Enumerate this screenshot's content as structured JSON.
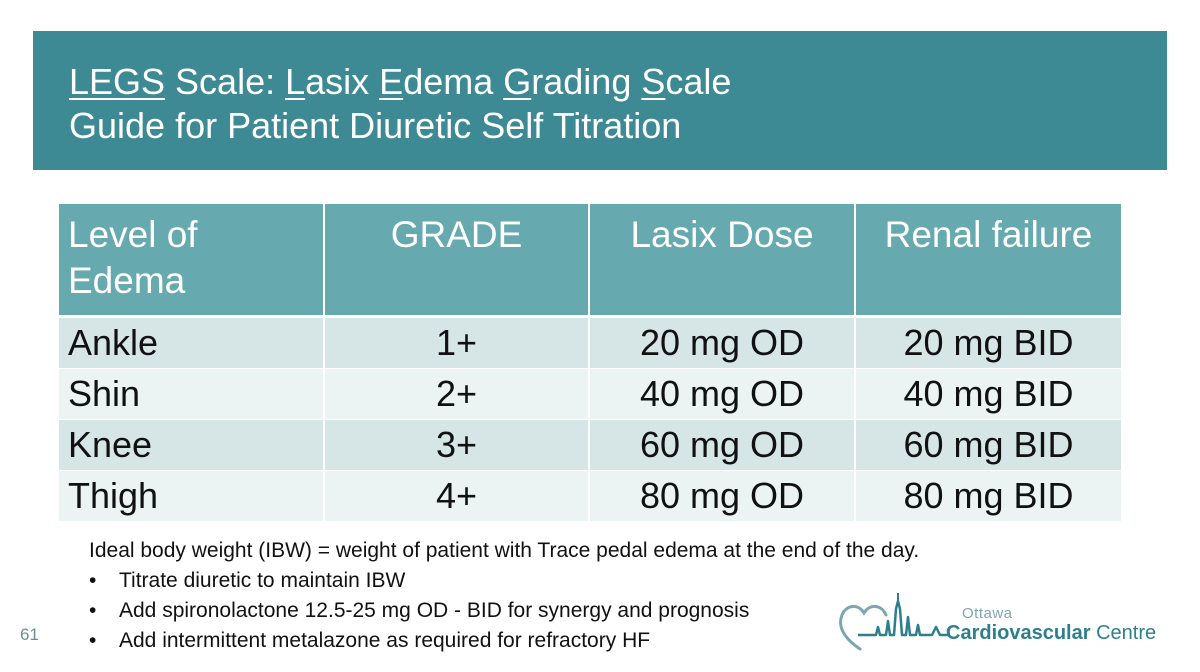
{
  "title": {
    "line1_parts": [
      {
        "text": "LEGS",
        "underline": true
      },
      {
        "text": " Scale: ",
        "underline": false
      },
      {
        "text": "L",
        "underline": true
      },
      {
        "text": "asix ",
        "underline": false
      },
      {
        "text": "E",
        "underline": true
      },
      {
        "text": "dema ",
        "underline": false
      },
      {
        "text": "G",
        "underline": true
      },
      {
        "text": "rading ",
        "underline": false
      },
      {
        "text": "S",
        "underline": true
      },
      {
        "text": "cale",
        "underline": false
      }
    ],
    "line2": "Guide for Patient Diuretic Self Titration"
  },
  "table": {
    "headers": [
      "Level of Edema",
      "GRADE",
      "Lasix Dose",
      "Renal failure"
    ],
    "rows": [
      [
        "Ankle",
        "1+",
        "20 mg OD",
        "20 mg BID"
      ],
      [
        "Shin",
        "2+",
        "40 mg OD",
        "40 mg BID"
      ],
      [
        "Knee",
        "3+",
        "60 mg OD",
        "60 mg BID"
      ],
      [
        "Thigh",
        "4+",
        "80 mg OD",
        "80 mg BID"
      ]
    ]
  },
  "notes": {
    "ibw": "Ideal body weight (IBW) = weight of patient with Trace pedal edema at the end of the day.",
    "bullet_char": "•",
    "bullets": [
      "Titrate diuretic to maintain IBW",
      "Add spironolactone 12.5-25 mg OD - BID for synergy and prognosis",
      "Add intermittent metalazone as required for refractory HF"
    ]
  },
  "slide_number": "61",
  "logo": {
    "line1": "Ottawa",
    "line2_bold": "Cardiovascular",
    "line2_rest": " Centre",
    "icon": "heart-skyline-logo-icon"
  },
  "colors": {
    "title_band": "#3d8a95",
    "header_row": "#66aab0",
    "row_odd": "#d6e6e7",
    "row_even": "#ecf3f3",
    "logo_teal": "#2d7f8d"
  }
}
